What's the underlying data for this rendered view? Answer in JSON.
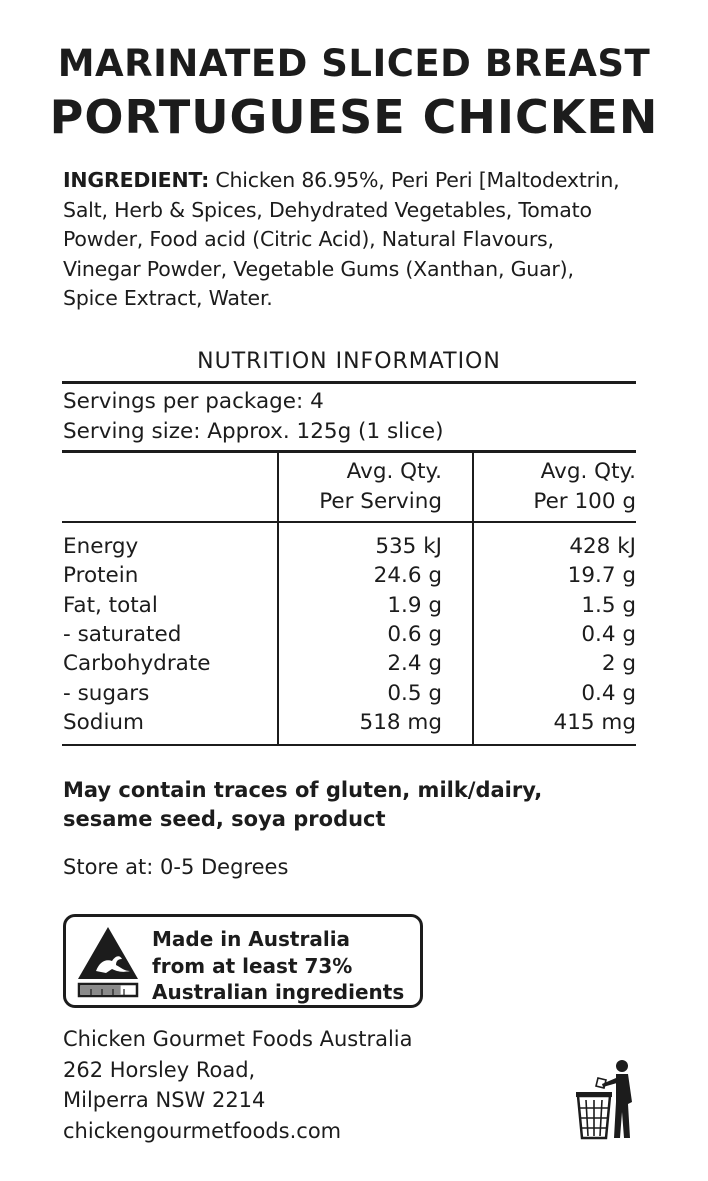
{
  "header": {
    "line1": "MARINATED SLICED BREAST",
    "line2": "PORTUGUESE CHICKEN"
  },
  "ingredients": {
    "label": "INGREDIENT:",
    "lines": [
      " Chicken 86.95%, Peri Peri [Maltodextrin,",
      "Salt, Herb & Spices, Dehydrated Vegetables, Tomato",
      "Powder, Food acid (Citric Acid), Natural Flavours,",
      "Vinegar Powder, Vegetable Gums (Xanthan, Guar),",
      "Spice Extract, Water."
    ]
  },
  "nutrition": {
    "heading": "NUTRITION INFORMATION",
    "servings": "Servings per package: 4",
    "serving_size": "Serving size: Approx. 125g (1 slice)",
    "col_serving": [
      "Avg. Qty.",
      "Per Serving"
    ],
    "col_100g": [
      "Avg. Qty.",
      "Per 100 g"
    ],
    "rows": [
      {
        "name": "Energy",
        "serving": "535 kJ",
        "per100": "428 kJ"
      },
      {
        "name": "Protein",
        "serving": "24.6 g",
        "per100": "19.7 g"
      },
      {
        "name": "Fat, total",
        "serving": "1.9 g",
        "per100": "1.5 g"
      },
      {
        "name": "- saturated",
        "serving": "0.6 g",
        "per100": "0.4 g"
      },
      {
        "name": "Carbohydrate",
        "serving": "2.4 g",
        "per100": "2 g"
      },
      {
        "name": "- sugars",
        "serving": "0.5 g",
        "per100": "0.4 g"
      },
      {
        "name": "Sodium",
        "serving": "518 mg",
        "per100": "415 mg"
      }
    ]
  },
  "allergen": [
    "May contain traces of gluten, milk/dairy,",
    "sesame seed, soya product"
  ],
  "storage": "Store at: 0-5 Degrees",
  "made_in": {
    "icon": "kangaroo-triangle-icon",
    "lines": [
      "Made in Australia",
      "from at least 73%",
      "Australian ingredients"
    ],
    "bar_fraction": 0.73
  },
  "address": {
    "lines": [
      "Chicken Gourmet Foods Australia",
      "262 Horsley Road,",
      "Milperra NSW 2214",
      "chickengourmetfoods.com"
    ]
  },
  "bin_icon": "tidy-man-bin-icon",
  "colors": {
    "ink": "#1c1c1c",
    "background": "#ffffff",
    "bar_fill": "#8a8a8a"
  }
}
